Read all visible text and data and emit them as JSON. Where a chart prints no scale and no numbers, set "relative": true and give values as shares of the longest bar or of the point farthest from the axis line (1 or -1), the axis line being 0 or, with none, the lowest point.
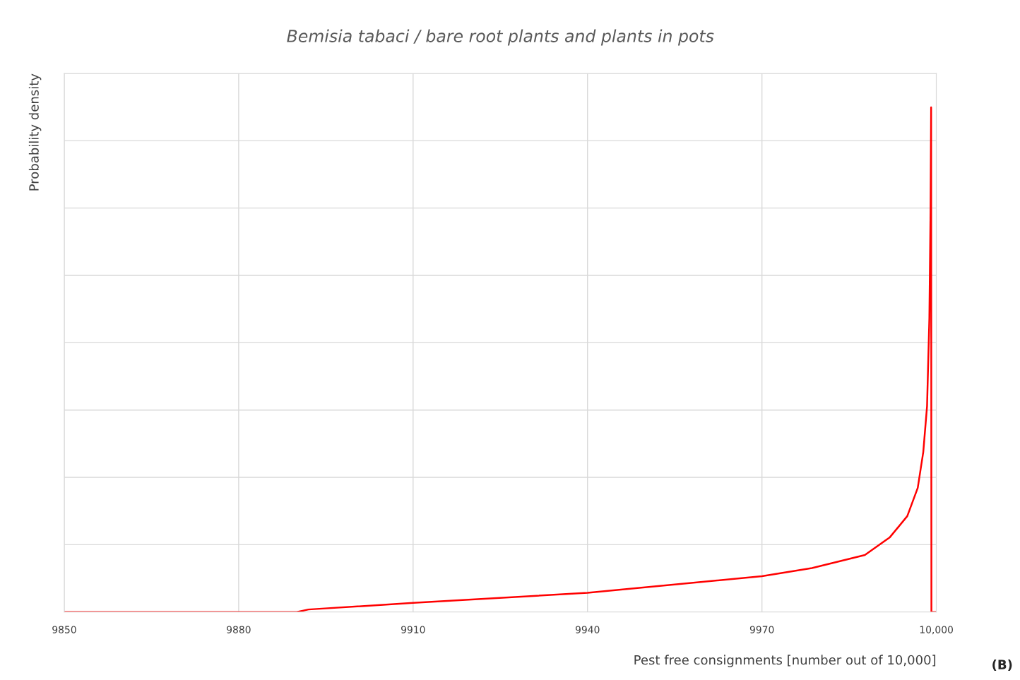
{
  "chart_data": {
    "type": "line",
    "title": "Bemisia tabaci / bare root plants and plants in pots",
    "xlabel": "Pest free consignments [number out of 10,000]",
    "ylabel": "Probability density",
    "relative": true,
    "x": [
      9850,
      9890,
      9892,
      9910,
      9940,
      9970,
      9978.6,
      9987.7,
      9992,
      9995,
      9996.8,
      9997.75,
      9998.4,
      9998.8,
      9999,
      9999.1,
      9999.15,
      10000
    ],
    "series": [
      {
        "color": "#ff0000",
        "values": [
          0,
          0,
          0.005,
          0.018,
          0.038,
          0.071,
          0.087,
          0.113,
          0.148,
          0.19,
          0.246,
          0.317,
          0.408,
          0.583,
          0.793,
          1,
          0,
          0
        ]
      }
    ],
    "xlim": [
      9850,
      10000
    ],
    "xticks": [
      9850,
      9880,
      9910,
      9940,
      9970,
      {
        "value": 10000,
        "label": "10,000"
      }
    ],
    "grid": true,
    "marker": "none",
    "line_style": "solid",
    "annotations": [
      "(B)"
    ]
  }
}
